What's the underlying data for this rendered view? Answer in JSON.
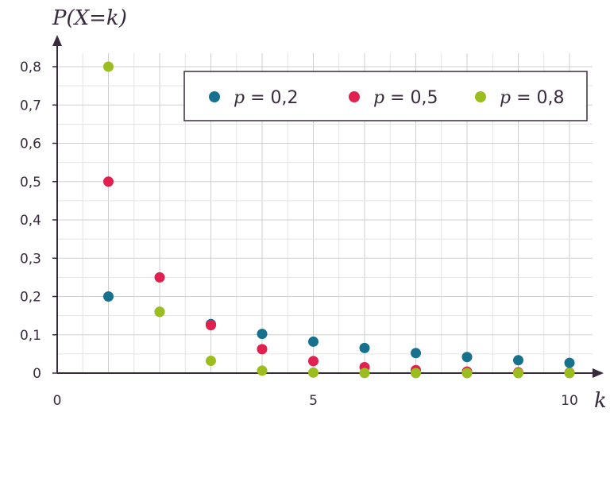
{
  "chart_data": {
    "type": "scatter",
    "title": "",
    "ylabel": "P(X=k)",
    "xlabel": "k",
    "xlim": [
      0,
      10.5
    ],
    "ylim": [
      0,
      0.8
    ],
    "grid": true,
    "legend_position": "top-right",
    "x_ticks": [
      "0",
      "5",
      "10"
    ],
    "y_ticks": [
      "0",
      "0,1",
      "0,2",
      "0,3",
      "0,4",
      "0,5",
      "0,6",
      "0,7",
      "0,8"
    ],
    "x": [
      1,
      2,
      3,
      4,
      5,
      6,
      7,
      8,
      9,
      10
    ],
    "series": [
      {
        "name": "p = 0,2",
        "legend_var": "p",
        "legend_rest": "= 0,2",
        "color": "#16718f",
        "values": [
          0.2,
          0.16,
          0.128,
          0.1024,
          0.082,
          0.0655,
          0.0524,
          0.0419,
          0.0336,
          0.0268
        ]
      },
      {
        "name": "p = 0,5",
        "legend_var": "p",
        "legend_rest": "= 0,5",
        "color": "#e0204f",
        "values": [
          0.5,
          0.25,
          0.125,
          0.0625,
          0.0313,
          0.0156,
          0.0078,
          0.0039,
          0.002,
          0.001
        ]
      },
      {
        "name": "p = 0,8",
        "legend_var": "p",
        "legend_rest": "= 0,8",
        "color": "#9cbd1e",
        "values": [
          0.8,
          0.16,
          0.032,
          0.0064,
          0.0013,
          0.0003,
          0.0001,
          0.0,
          0.0,
          0.0
        ]
      }
    ]
  }
}
